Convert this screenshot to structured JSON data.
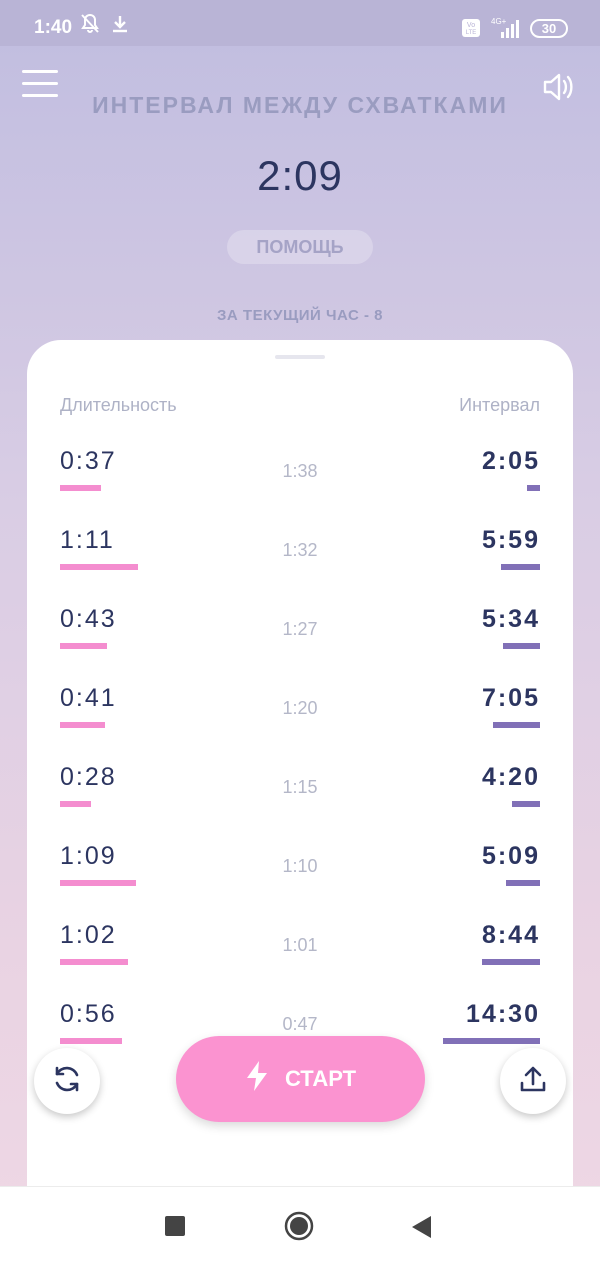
{
  "status_bar": {
    "time": "1:40",
    "battery": "30"
  },
  "header": {
    "title": "ИНТЕРВАЛ МЕЖДУ СХВАТКАМИ",
    "current_interval": "2:09",
    "help_label": "ПОМОЩЬ",
    "hour_count": "ЗА ТЕКУЩИЙ ЧАС - 8"
  },
  "table": {
    "col_duration": "Длительность",
    "col_interval": "Интервал",
    "rows": [
      {
        "duration": "0:37",
        "mid": "1:38",
        "interval": "2:05"
      },
      {
        "duration": "1:11",
        "mid": "1:32",
        "interval": "5:59"
      },
      {
        "duration": "0:43",
        "mid": "1:27",
        "interval": "5:34"
      },
      {
        "duration": "0:41",
        "mid": "1:20",
        "interval": "7:05"
      },
      {
        "duration": "0:28",
        "mid": "1:15",
        "interval": "4:20"
      },
      {
        "duration": "1:09",
        "mid": "1:10",
        "interval": "5:09"
      },
      {
        "duration": "1:02",
        "mid": "1:01",
        "interval": "8:44"
      },
      {
        "duration": "0:56",
        "mid": "0:47",
        "interval": "14:30"
      }
    ]
  },
  "start_button": {
    "label": "СТАРТ"
  },
  "colors": {
    "accent_pink": "#fb93d0",
    "duration_bar": "#f48dcf",
    "interval_bar": "#8170b7",
    "text_dark": "#2c3560"
  },
  "icons": [
    "menu-icon",
    "speaker-icon",
    "reset-icon",
    "lightning-icon",
    "share-icon",
    "nav-square-icon",
    "nav-home-icon",
    "nav-back-icon"
  ]
}
